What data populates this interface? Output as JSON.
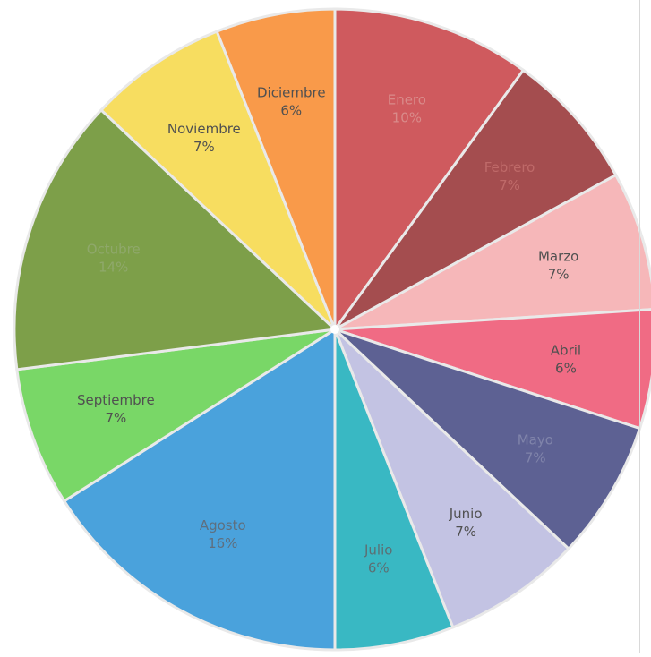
{
  "chart_data": {
    "type": "pie",
    "title": "",
    "start_angle_deg": 0,
    "direction": "clockwise",
    "slices": [
      {
        "label": "Enero",
        "value": 10,
        "display": "10%",
        "color": "#cf5a5e",
        "text_color": "#d98b8a"
      },
      {
        "label": "Febrero",
        "value": 7,
        "display": "7%",
        "color": "#a44d4f",
        "text_color": "#bf6a69"
      },
      {
        "label": "Marzo",
        "value": 7,
        "display": "7%",
        "color": "#f6b7b9",
        "text_color": "#505050"
      },
      {
        "label": "Abril",
        "value": 6,
        "display": "6%",
        "color": "#f06b84",
        "text_color": "#505050"
      },
      {
        "label": "Mayo",
        "value": 7,
        "display": "7%",
        "color": "#5d6193",
        "text_color": "#8084aa"
      },
      {
        "label": "Junio",
        "value": 7,
        "display": "7%",
        "color": "#c3c3e3",
        "text_color": "#505050"
      },
      {
        "label": "Julio",
        "value": 6,
        "display": "6%",
        "color": "#39b8c3",
        "text_color": "#5c6f73"
      },
      {
        "label": "Agosto",
        "value": 16,
        "display": "16%",
        "color": "#4aa2dc",
        "text_color": "#5e6f7f"
      },
      {
        "label": "Septiembre",
        "value": 7,
        "display": "7%",
        "color": "#79d767",
        "text_color": "#505050"
      },
      {
        "label": "Octubre",
        "value": 14,
        "display": "14%",
        "color": "#7d9f49",
        "text_color": "#8fa86b"
      },
      {
        "label": "Noviembre",
        "value": 7,
        "display": "7%",
        "color": "#f7dd60",
        "text_color": "#505050"
      },
      {
        "label": "Diciembre",
        "value": 6,
        "display": "6%",
        "color": "#f99a4a",
        "text_color": "#505050"
      }
    ]
  }
}
